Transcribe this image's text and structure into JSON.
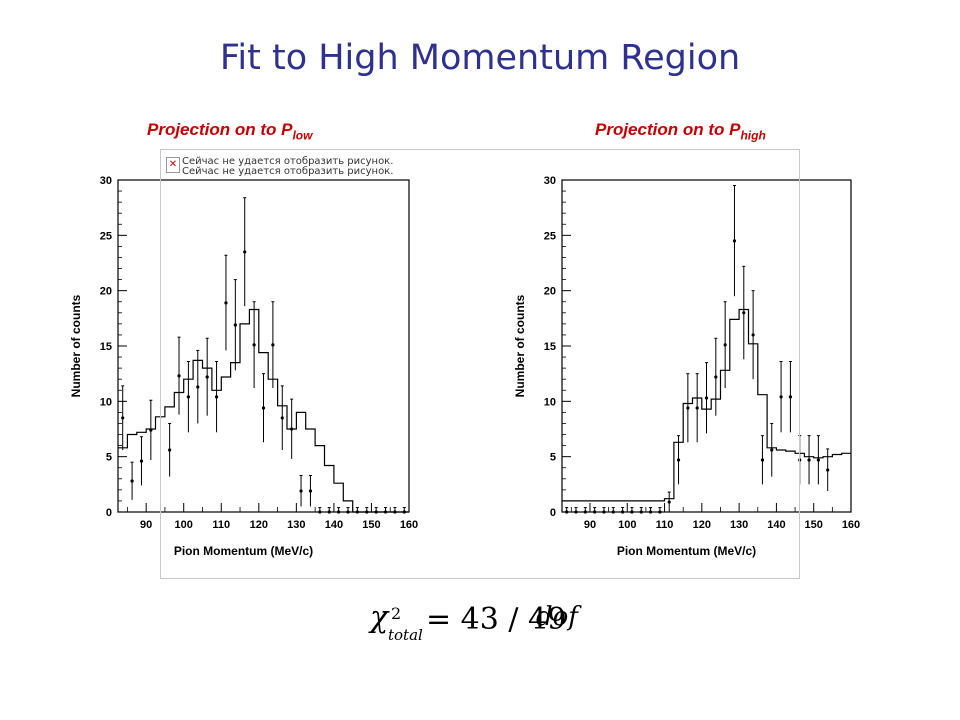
{
  "slide": {
    "title": "Fit to High Momentum Region",
    "subtitle_left": {
      "text": "Projection on to P",
      "sub": "low"
    },
    "subtitle_right": {
      "text": "Projection on to P",
      "sub": "high"
    },
    "broken_image_text": "Сейчас не удается отобразить рисунок.",
    "formula": {
      "symbol": "χ",
      "superscript": "2",
      "subscript": "total",
      "expression": "= 43 / 49",
      "unit": "dof"
    }
  },
  "chart_data": [
    {
      "type": "histogram",
      "xlabel": "Pion Momentum (MeV/c)",
      "ylabel": "Number of counts",
      "xlim": [
        82.5,
        160
      ],
      "ylim": [
        0,
        30
      ],
      "xticks": [
        90,
        100,
        110,
        120,
        130,
        140,
        150,
        160
      ],
      "yticks": [
        0,
        5,
        10,
        15,
        20,
        25,
        30
      ],
      "bin_edges": [
        82.5,
        85,
        87.5,
        90,
        92.5,
        95,
        97.5,
        100,
        102.5,
        105,
        107.5,
        110,
        112.5,
        115,
        117.5,
        120,
        122.5,
        125,
        127.5,
        130,
        132.5,
        135,
        137.5,
        140,
        142.5,
        145,
        147.5,
        150,
        152.5,
        155,
        157.5,
        160
      ],
      "fit_values": [
        5.8,
        7,
        7.2,
        7.5,
        8.6,
        9.5,
        10.8,
        12,
        13.7,
        13,
        11,
        12.2,
        13.5,
        17,
        18.3,
        14.4,
        12,
        9.6,
        7.5,
        9,
        7.5,
        6,
        4.2,
        2.6,
        1,
        0,
        0,
        0,
        0,
        0,
        0
      ],
      "points": [
        {
          "x": 83.75,
          "y": 8.5,
          "err": 2.9
        },
        {
          "x": 86.25,
          "y": 2.8,
          "err": 1.7
        },
        {
          "x": 88.75,
          "y": 4.6,
          "err": 2.2
        },
        {
          "x": 91.25,
          "y": 7.4,
          "err": 2.7
        },
        {
          "x": 96.25,
          "y": 5.6,
          "err": 2.4
        },
        {
          "x": 98.75,
          "y": 12.3,
          "err": 3.5
        },
        {
          "x": 101.25,
          "y": 10.4,
          "err": 3.2
        },
        {
          "x": 103.75,
          "y": 11.3,
          "err": 3.3
        },
        {
          "x": 106.25,
          "y": 12.2,
          "err": 3.5
        },
        {
          "x": 108.75,
          "y": 10.4,
          "err": 3.2
        },
        {
          "x": 111.25,
          "y": 18.9,
          "err": 4.3
        },
        {
          "x": 113.75,
          "y": 16.9,
          "err": 4.1
        },
        {
          "x": 116.25,
          "y": 23.5,
          "err": 4.9
        },
        {
          "x": 118.75,
          "y": 15.1,
          "err": 3.9
        },
        {
          "x": 121.25,
          "y": 9.4,
          "err": 3.1
        },
        {
          "x": 123.75,
          "y": 15.1,
          "err": 3.9
        },
        {
          "x": 126.25,
          "y": 8.5,
          "err": 2.9
        },
        {
          "x": 128.75,
          "y": 7.5,
          "err": 2.7
        },
        {
          "x": 131.25,
          "y": 1.9,
          "err": 1.4
        },
        {
          "x": 133.75,
          "y": 1.9,
          "err": 1.4
        },
        {
          "x": 136.25,
          "y": 0,
          "err": 0.4
        },
        {
          "x": 138.75,
          "y": 0,
          "err": 0.4
        },
        {
          "x": 141.25,
          "y": 0,
          "err": 0.4
        },
        {
          "x": 143.75,
          "y": 0,
          "err": 0.4
        },
        {
          "x": 146.25,
          "y": 0,
          "err": 0.4
        },
        {
          "x": 148.75,
          "y": 0,
          "err": 0.4
        },
        {
          "x": 151.25,
          "y": 0,
          "err": 0.4
        },
        {
          "x": 153.75,
          "y": 0,
          "err": 0.4
        },
        {
          "x": 156.25,
          "y": 0,
          "err": 0.4
        },
        {
          "x": 158.75,
          "y": 0,
          "err": 0.4
        }
      ]
    },
    {
      "type": "histogram",
      "xlabel": "Pion Momentum (MeV/c)",
      "ylabel": "Number of counts",
      "xlim": [
        82.5,
        160
      ],
      "ylim": [
        0,
        30
      ],
      "xticks": [
        90,
        100,
        110,
        120,
        130,
        140,
        150,
        160
      ],
      "yticks": [
        0,
        5,
        10,
        15,
        20,
        25,
        30
      ],
      "bin_edges": [
        82.5,
        85,
        87.5,
        90,
        92.5,
        95,
        97.5,
        100,
        102.5,
        105,
        107.5,
        110,
        112.5,
        115,
        117.5,
        120,
        122.5,
        125,
        127.5,
        130,
        132.5,
        135,
        137.5,
        140,
        142.5,
        145,
        147.5,
        150,
        152.5,
        155,
        157.5,
        160
      ],
      "fit_values": [
        1,
        1,
        1,
        1,
        1,
        1,
        1,
        1,
        1,
        1,
        1,
        1.2,
        6.3,
        9.8,
        10.3,
        9.3,
        10.2,
        12.8,
        17.4,
        18.3,
        15.2,
        10.6,
        5.8,
        5.6,
        5.5,
        5.3,
        5,
        4.9,
        5,
        5.2,
        5.3
      ],
      "points": [
        {
          "x": 83.75,
          "y": 0,
          "err": 0.4
        },
        {
          "x": 86.25,
          "y": 0,
          "err": 0.4
        },
        {
          "x": 88.75,
          "y": 0,
          "err": 0.4
        },
        {
          "x": 91.25,
          "y": 0,
          "err": 0.4
        },
        {
          "x": 93.75,
          "y": 0,
          "err": 0.4
        },
        {
          "x": 96.25,
          "y": 0,
          "err": 0.4
        },
        {
          "x": 98.75,
          "y": 0,
          "err": 0.4
        },
        {
          "x": 101.25,
          "y": 0,
          "err": 0.4
        },
        {
          "x": 103.75,
          "y": 0,
          "err": 0.4
        },
        {
          "x": 106.25,
          "y": 0,
          "err": 0.4
        },
        {
          "x": 108.75,
          "y": 0,
          "err": 0.4
        },
        {
          "x": 111.25,
          "y": 0.9,
          "err": 0.9
        },
        {
          "x": 113.75,
          "y": 4.7,
          "err": 2.2
        },
        {
          "x": 116.25,
          "y": 9.4,
          "err": 3.1
        },
        {
          "x": 118.75,
          "y": 9.4,
          "err": 3.1
        },
        {
          "x": 121.25,
          "y": 10.3,
          "err": 3.2
        },
        {
          "x": 123.75,
          "y": 12.2,
          "err": 3.5
        },
        {
          "x": 126.25,
          "y": 15.1,
          "err": 3.9
        },
        {
          "x": 128.75,
          "y": 24.5,
          "err": 5
        },
        {
          "x": 131.25,
          "y": 18,
          "err": 4.2
        },
        {
          "x": 133.75,
          "y": 16,
          "err": 4
        },
        {
          "x": 136.25,
          "y": 4.7,
          "err": 2.2
        },
        {
          "x": 138.75,
          "y": 5.6,
          "err": 2.4
        },
        {
          "x": 141.25,
          "y": 10.4,
          "err": 3.2
        },
        {
          "x": 143.75,
          "y": 10.4,
          "err": 3.2
        },
        {
          "x": 146.25,
          "y": 4.7,
          "err": 2.2
        },
        {
          "x": 148.75,
          "y": 4.7,
          "err": 2.2
        },
        {
          "x": 151.25,
          "y": 4.7,
          "err": 2.2
        },
        {
          "x": 153.75,
          "y": 3.8,
          "err": 1.9
        }
      ]
    }
  ]
}
